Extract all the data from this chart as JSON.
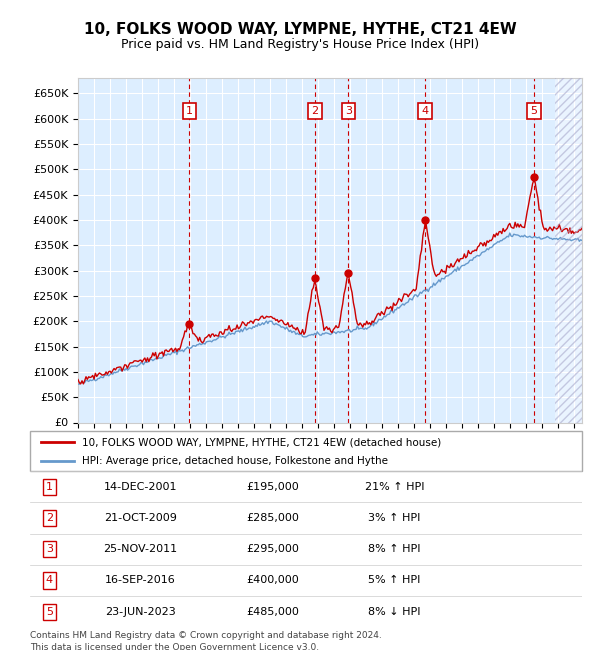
{
  "title": "10, FOLKS WOOD WAY, LYMPNE, HYTHE, CT21 4EW",
  "subtitle": "Price paid vs. HM Land Registry's House Price Index (HPI)",
  "ylabel_ticks": [
    "£0",
    "£50K",
    "£100K",
    "£150K",
    "£200K",
    "£250K",
    "£300K",
    "£350K",
    "£400K",
    "£450K",
    "£500K",
    "£550K",
    "£600K",
    "£650K"
  ],
  "ytick_values": [
    0,
    50000,
    100000,
    150000,
    200000,
    250000,
    300000,
    350000,
    400000,
    450000,
    500000,
    550000,
    600000,
    650000
  ],
  "xmin": 1995.0,
  "xmax": 2026.5,
  "ymin": 0,
  "ymax": 680000,
  "sale_dates": [
    2001.96,
    2009.8,
    2011.9,
    2016.71,
    2023.48
  ],
  "sale_prices": [
    195000,
    285000,
    295000,
    400000,
    485000
  ],
  "sale_labels": [
    "1",
    "2",
    "3",
    "4",
    "5"
  ],
  "sale_info": [
    {
      "num": "1",
      "date": "14-DEC-2001",
      "price": "£195,000",
      "pct": "21%",
      "dir": "↑"
    },
    {
      "num": "2",
      "date": "21-OCT-2009",
      "price": "£285,000",
      "pct": "3%",
      "dir": "↑"
    },
    {
      "num": "3",
      "date": "25-NOV-2011",
      "price": "£295,000",
      "pct": "8%",
      "dir": "↑"
    },
    {
      "num": "4",
      "date": "16-SEP-2016",
      "price": "£400,000",
      "pct": "5%",
      "dir": "↑"
    },
    {
      "num": "5",
      "date": "23-JUN-2023",
      "price": "£485,000",
      "pct": "8%",
      "dir": "↓"
    }
  ],
  "legend_line1": "10, FOLKS WOOD WAY, LYMPNE, HYTHE, CT21 4EW (detached house)",
  "legend_line2": "HPI: Average price, detached house, Folkestone and Hythe",
  "footer1": "Contains HM Land Registry data © Crown copyright and database right 2024.",
  "footer2": "This data is licensed under the Open Government Licence v3.0.",
  "red_color": "#cc0000",
  "blue_color": "#6699cc",
  "bg_color": "#ddeeff",
  "hatch_color": "#aaaacc"
}
